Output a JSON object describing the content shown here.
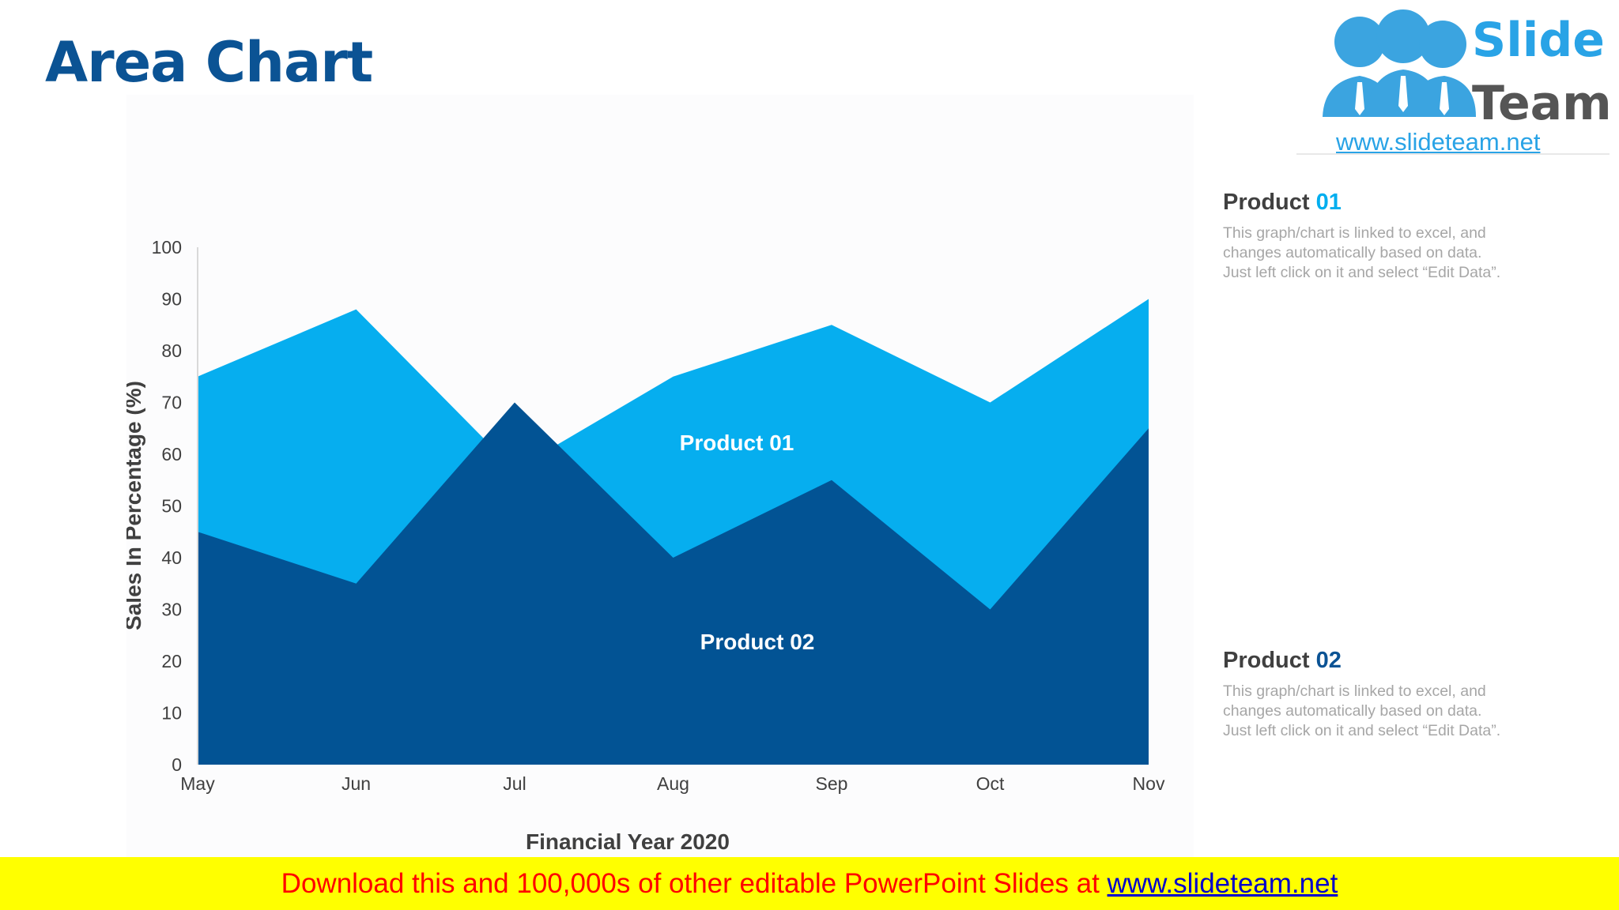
{
  "page": {
    "title": "Area Chart"
  },
  "logo": {
    "word1": "Slide",
    "word2": "Team",
    "url": "www.slideteam.net"
  },
  "legend": [
    {
      "name": "Product",
      "number": "01",
      "number_color": "#00aeef",
      "desc": [
        "This graph/chart is linked to excel, and",
        "changes automatically based on data.",
        "Just left click on it and select “Edit Data”."
      ]
    },
    {
      "name": "Product",
      "number": "02",
      "number_color": "#0b5394",
      "desc": [
        "This graph/chart is linked to excel, and",
        "changes automatically based on data.",
        "Just left click on it and select “Edit Data”."
      ]
    }
  ],
  "banner": {
    "text": "Download this and 100,000s of other editable PowerPoint Slides at ",
    "link": "www.slideteam.net"
  },
  "chart_data": {
    "type": "area",
    "categories": [
      "May",
      "Jun",
      "Jul",
      "Aug",
      "Sep",
      "Oct",
      "Nov"
    ],
    "series": [
      {
        "name": "Product 01",
        "values": [
          75,
          88,
          57,
          75,
          85,
          70,
          90
        ],
        "color": "#06aeef"
      },
      {
        "name": "Product 02",
        "values": [
          45,
          35,
          70,
          40,
          55,
          30,
          65
        ],
        "color": "#025394"
      }
    ],
    "xlabel": "Financial Year 2020",
    "ylabel": "Sales In Percentage (%)",
    "ylim": [
      0,
      100
    ],
    "yticks": [
      0,
      10,
      20,
      30,
      40,
      50,
      60,
      70,
      80,
      90,
      100
    ],
    "grid": false
  }
}
